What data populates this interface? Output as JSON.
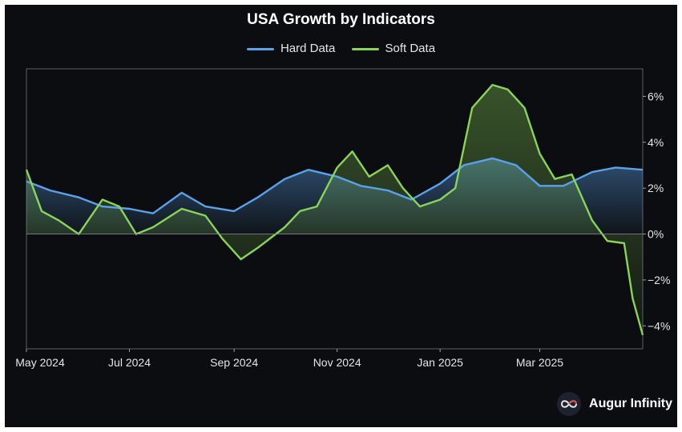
{
  "chart_data": {
    "type": "area",
    "title": "USA Growth by Indicators",
    "x_ticks": [
      "May 2024",
      "Jul 2024",
      "Sep 2024",
      "Nov 2024",
      "Jan 2025",
      "Mar 2025"
    ],
    "y_ticks": [
      "6%",
      "4%",
      "2%",
      "0%",
      "−2%",
      "−4%"
    ],
    "y_tick_values": [
      6,
      4,
      2,
      0,
      -2,
      -4
    ],
    "ylim": [
      -5,
      7.2
    ],
    "xlim": [
      "2024-05-01",
      "2025-05-01"
    ],
    "y_axis_position": "right",
    "grid": false,
    "legend_position": "top-center",
    "series": [
      {
        "name": "Hard Data",
        "color": "#5aa2ea",
        "x": [
          "2024-05-01",
          "2024-05-15",
          "2024-06-01",
          "2024-06-15",
          "2024-07-01",
          "2024-07-15",
          "2024-08-01",
          "2024-08-15",
          "2024-09-01",
          "2024-09-15",
          "2024-10-01",
          "2024-10-15",
          "2024-11-01",
          "2024-11-15",
          "2024-12-01",
          "2024-12-15",
          "2025-01-01",
          "2025-01-15",
          "2025-02-01",
          "2025-02-15",
          "2025-03-01",
          "2025-03-15",
          "2025-04-01",
          "2025-04-15",
          "2025-05-01"
        ],
        "values": [
          2.3,
          1.9,
          1.6,
          1.2,
          1.1,
          0.9,
          1.8,
          1.2,
          1.0,
          1.6,
          2.4,
          2.8,
          2.5,
          2.1,
          1.9,
          1.5,
          2.2,
          3.0,
          3.3,
          3.0,
          2.1,
          2.1,
          2.7,
          2.9,
          2.8
        ]
      },
      {
        "name": "Soft Data",
        "color": "#8ad45a",
        "x": [
          "2024-05-01",
          "2024-05-10",
          "2024-05-20",
          "2024-06-01",
          "2024-06-15",
          "2024-06-25",
          "2024-07-05",
          "2024-07-15",
          "2024-08-01",
          "2024-08-15",
          "2024-08-25",
          "2024-09-05",
          "2024-09-15",
          "2024-10-01",
          "2024-10-10",
          "2024-10-20",
          "2024-11-01",
          "2024-11-10",
          "2024-11-20",
          "2024-12-01",
          "2024-12-10",
          "2024-12-20",
          "2025-01-01",
          "2025-01-10",
          "2025-01-20",
          "2025-02-01",
          "2025-02-10",
          "2025-02-20",
          "2025-03-01",
          "2025-03-10",
          "2025-03-20",
          "2025-04-01",
          "2025-04-10",
          "2025-04-20",
          "2025-04-25",
          "2025-05-01"
        ],
        "values": [
          2.8,
          1.0,
          0.6,
          0.0,
          1.5,
          1.2,
          0.0,
          0.3,
          1.1,
          0.8,
          -0.2,
          -1.1,
          -0.6,
          0.3,
          1.0,
          1.2,
          2.9,
          3.6,
          2.5,
          3.0,
          2.0,
          1.2,
          1.5,
          2.0,
          5.5,
          6.5,
          6.3,
          5.5,
          3.5,
          2.4,
          2.6,
          0.6,
          -0.3,
          -0.4,
          -2.8,
          -4.4
        ]
      }
    ]
  },
  "brand": {
    "name": "Augur Infinity",
    "logo_icon": "infinity-icon",
    "logo_color": "#e04b4b"
  }
}
